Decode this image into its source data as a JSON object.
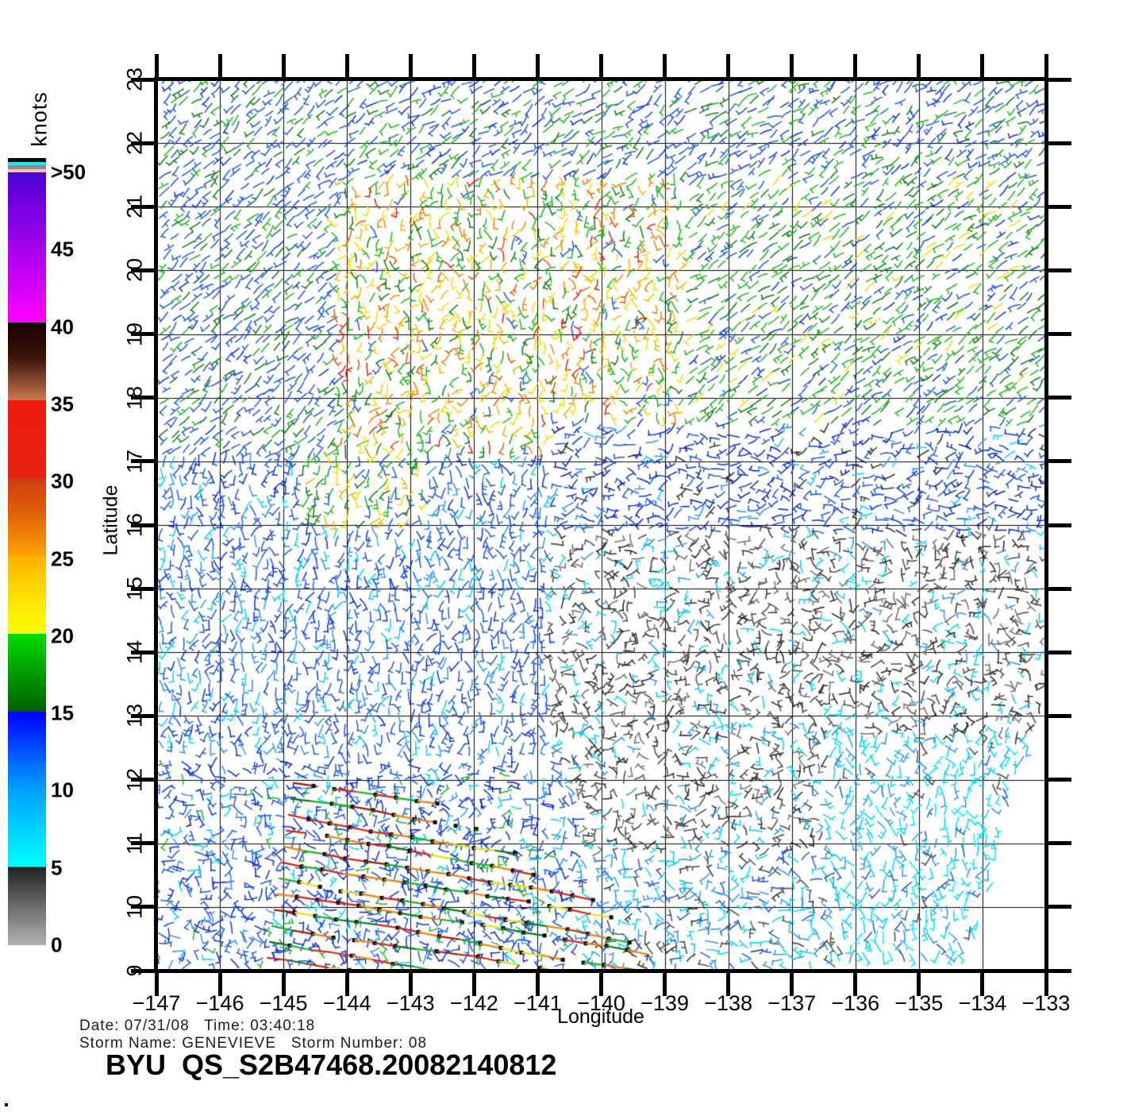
{
  "colorbar": {
    "title": "knots",
    "labels": [
      {
        "text": ">50",
        "knots": 50
      },
      {
        "text": "45",
        "knots": 45
      },
      {
        "text": "40",
        "knots": 40
      },
      {
        "text": "35",
        "knots": 35
      },
      {
        "text": "30",
        "knots": 30
      },
      {
        "text": "25",
        "knots": 25
      },
      {
        "text": "20",
        "knots": 20
      },
      {
        "text": "15",
        "knots": 15
      },
      {
        "text": "10",
        "knots": 10
      },
      {
        "text": "5",
        "knots": 5
      },
      {
        "text": "0",
        "knots": 0
      }
    ],
    "top_stripes": [
      "#000000",
      "#00f0ff",
      "#8c8c8c",
      "#ffb6be"
    ],
    "gradient_stops": [
      [
        "0%",
        "#4a00d2"
      ],
      [
        "12%",
        "#b800f0"
      ],
      [
        "19.4%",
        "#ff00ff"
      ],
      [
        "19.4%",
        "#160000"
      ],
      [
        "24%",
        "#3c1406"
      ],
      [
        "29.5%",
        "#c87a50"
      ],
      [
        "29.5%",
        "#f01a0e"
      ],
      [
        "39.6%",
        "#e42410"
      ],
      [
        "39.6%",
        "#cc3c12"
      ],
      [
        "44%",
        "#e06008"
      ],
      [
        "49.6%",
        "#ffa200"
      ],
      [
        "49.6%",
        "#ffb000"
      ],
      [
        "55%",
        "#ffe000"
      ],
      [
        "59.7%",
        "#fdfd00"
      ],
      [
        "59.7%",
        "#00dc00"
      ],
      [
        "69.8%",
        "#005e00"
      ],
      [
        "69.8%",
        "#0000ff"
      ],
      [
        "79.9%",
        "#00a2ff"
      ],
      [
        "89.9%",
        "#00ffff"
      ],
      [
        "89.9%",
        "#232323"
      ],
      [
        "100%",
        "#b2b2b2"
      ]
    ]
  },
  "axes": {
    "xlabel": "Longitude",
    "ylabel": "Latitude",
    "x_ticks": [
      {
        "value": -147,
        "label": "−147"
      },
      {
        "value": -146,
        "label": "−146"
      },
      {
        "value": -145,
        "label": "−145"
      },
      {
        "value": -144,
        "label": "−144"
      },
      {
        "value": -143,
        "label": "−143"
      },
      {
        "value": -142,
        "label": "−142"
      },
      {
        "value": -141,
        "label": "−141"
      },
      {
        "value": -140,
        "label": "−140"
      },
      {
        "value": -139,
        "label": "−139"
      },
      {
        "value": -138,
        "label": "−138"
      },
      {
        "value": -137,
        "label": "−137"
      },
      {
        "value": -136,
        "label": "−136"
      },
      {
        "value": -135,
        "label": "−135"
      },
      {
        "value": -134,
        "label": "−134"
      },
      {
        "value": -133,
        "label": "−133"
      }
    ],
    "y_ticks": [
      {
        "value": 23,
        "label": "23"
      },
      {
        "value": 22,
        "label": "22"
      },
      {
        "value": 21,
        "label": "21"
      },
      {
        "value": 20,
        "label": "20"
      },
      {
        "value": 19,
        "label": "19"
      },
      {
        "value": 18,
        "label": "18"
      },
      {
        "value": 17,
        "label": "17"
      },
      {
        "value": 16,
        "label": "16"
      },
      {
        "value": 15,
        "label": "15"
      },
      {
        "value": 14,
        "label": "14"
      },
      {
        "value": 13,
        "label": "13"
      },
      {
        "value": 12,
        "label": "12"
      },
      {
        "value": 11,
        "label": "11"
      },
      {
        "value": 10,
        "label": "10"
      },
      {
        "value": 9,
        "label": "9"
      }
    ]
  },
  "footer": {
    "date_line": "Date: 07/31/08   Time: 03:40:18",
    "storm_line": "Storm Name: GENEVIEVE   Storm Number: 08",
    "title_line": "BYU  QS_S2B47468.20082140812"
  },
  "chart_data": {
    "type": "scatter",
    "subtype": "wind-vector-map",
    "title": "BYU  QS_S2B47468.20082140812",
    "date": "07/31/08",
    "time": "03:40:18",
    "storm_name": "GENEVIEVE",
    "storm_number": "08",
    "xlabel": "Longitude",
    "ylabel": "Latitude",
    "xlim": [
      -147,
      -133
    ],
    "ylim": [
      9,
      23
    ],
    "grid": true,
    "speed_unit": "knots",
    "speed_scale_knots": [
      0,
      5,
      10,
      15,
      20,
      25,
      30,
      35,
      40,
      45,
      50
    ],
    "palette": {
      "gray_light": "#6e6e6e",
      "gray": "#4a4a4a",
      "gray_dark": "#2e2e2e",
      "black2": "#1e1e1e",
      "cyan": "#00d4f0",
      "cyan_bright": "#00e8fa",
      "blue_light": "#2e96ea",
      "blue_royal": "#2255dc",
      "blue": "#0c2fd8",
      "navy": "#0a1aa0",
      "green_dark": "#0b7a10",
      "green": "#1eb41e",
      "green_bright": "#27d427",
      "yellow": "#ecde00",
      "gold": "#f0b400",
      "orange": "#f08200",
      "orange_red": "#e25606",
      "red": "#d62412",
      "red_dark": "#a01a08"
    },
    "barb": {
      "spacing": 13,
      "len_min": 12,
      "len_max": 18,
      "seed": 42
    },
    "wind_regions": [
      {
        "name": "swath-gap-no-data",
        "skip": true,
        "edge_skip": {
          "lon_at_lat9": -134.25,
          "dlon_dlat": 0.28,
          "lat_max": 13.4
        },
        "knots": "no data"
      },
      {
        "name": "storm-zone-background",
        "lon": [
          -147,
          -140.4
        ],
        "lat": [
          9,
          12.25
        ],
        "knots": "8-15",
        "colors": [
          [
            "blue_royal",
            0.34
          ],
          [
            "blue",
            0.3
          ],
          [
            "blue_light",
            0.16
          ],
          [
            "cyan",
            0.08
          ],
          [
            "green",
            0.07
          ],
          [
            "navy",
            0.05
          ]
        ],
        "angle": 210,
        "spread": 170,
        "tick": 0.75,
        "bend": 0.35
      },
      {
        "name": "bottom-middle",
        "lon": [
          -140.4,
          -136.4
        ],
        "lat": [
          9,
          10.9
        ],
        "knots": "4-10",
        "colors": [
          [
            "blue_light",
            0.3
          ],
          [
            "cyan",
            0.28
          ],
          [
            "blue_royal",
            0.18
          ],
          [
            "gray",
            0.14
          ],
          [
            "gray_dark",
            0.1
          ]
        ],
        "angle": -25,
        "spread": 80,
        "tick": 0.7,
        "bend": 0.35
      },
      {
        "name": "bottom-right-cyan",
        "lon": [
          -136.4,
          -133
        ],
        "lat": [
          9,
          12.6
        ],
        "knots": "5-9",
        "colors": [
          [
            "cyan",
            0.42
          ],
          [
            "cyan_bright",
            0.2
          ],
          [
            "blue_light",
            0.22
          ],
          [
            "gray",
            0.1
          ],
          [
            "blue_royal",
            0.06
          ]
        ],
        "angle": 95,
        "spread": 55,
        "tick": 0.75,
        "bend": 0.3
      },
      {
        "name": "mid-warm-patch",
        "lon": [
          -144.7,
          -142.8
        ],
        "lat": [
          15.9,
          17.0
        ],
        "knots": "15-22",
        "colors": [
          [
            "green",
            0.25
          ],
          [
            "yellow",
            0.22
          ],
          [
            "blue_royal",
            0.22
          ],
          [
            "green_dark",
            0.16
          ],
          [
            "gold",
            0.15
          ]
        ],
        "angle": 75,
        "spread": 45,
        "tick": 0.8,
        "bend": 0.5
      },
      {
        "name": "mid-left-blue",
        "lon": [
          -147,
          -140.8
        ],
        "lat": [
          12.25,
          17.0
        ],
        "knots": "10-14",
        "colors": [
          [
            "blue_royal",
            0.46
          ],
          [
            "blue",
            0.22
          ],
          [
            "blue_light",
            0.18
          ],
          [
            "cyan",
            0.14
          ]
        ],
        "angle": 85,
        "spread": 40,
        "tick": 0.85,
        "bend": 0.35
      },
      {
        "name": "low-wind-gray",
        "lon": [
          -140.8,
          -133
        ],
        "lat": [
          10.9,
          15.9
        ],
        "knots": "0-7",
        "colors": [
          [
            "gray",
            0.26
          ],
          [
            "gray_dark",
            0.22
          ],
          [
            "gray_light",
            0.14
          ],
          [
            "black2",
            0.1
          ],
          [
            "cyan",
            0.18
          ],
          [
            "blue_light",
            0.1
          ]
        ],
        "angle": 0,
        "spread": 180,
        "tick": 0.75,
        "bend": 0.5
      },
      {
        "name": "right-blue-band",
        "lon": [
          -140.8,
          -133
        ],
        "lat": [
          15.9,
          17.55
        ],
        "knots": "10-15",
        "colors": [
          [
            "blue",
            0.34
          ],
          [
            "blue_royal",
            0.28
          ],
          [
            "navy",
            0.14
          ],
          [
            "blue_light",
            0.1
          ],
          [
            "gray_dark",
            0.09
          ],
          [
            "cyan",
            0.05
          ]
        ],
        "angle": 15,
        "spread": 50,
        "tick": 0.7,
        "bend": 0.35
      },
      {
        "name": "upper-left-blue-green",
        "lon": [
          -147,
          -144.2
        ],
        "lat": [
          17.0,
          23
        ],
        "knots": "12-17",
        "colors": [
          [
            "blue_royal",
            0.62
          ],
          [
            "green_dark",
            0.16
          ],
          [
            "green",
            0.14
          ],
          [
            "blue",
            0.08
          ]
        ],
        "angle": 42,
        "spread": 16,
        "tick": 0.45,
        "bend": 0.25
      },
      {
        "name": "top-band",
        "lon": [
          -144.2,
          -133
        ],
        "lat": [
          21.4,
          23
        ],
        "knots": "12-18",
        "colors": [
          [
            "blue_royal",
            0.48
          ],
          [
            "green",
            0.26
          ],
          [
            "green_dark",
            0.12
          ],
          [
            "blue",
            0.14
          ]
        ],
        "angle": 36,
        "spread": 22,
        "tick": 0.4,
        "bend": 0.25
      },
      {
        "name": "upper-middle-warm",
        "lon": [
          -144.2,
          -138.7
        ],
        "lat": [
          17.0,
          21.4
        ],
        "knots": "18-28",
        "colors": [
          [
            "green",
            0.24
          ],
          [
            "yellow",
            0.19
          ],
          [
            "gold",
            0.15
          ],
          [
            "green_dark",
            0.12
          ],
          [
            "orange",
            0.13
          ],
          [
            "orange_red",
            0.07
          ],
          [
            "red",
            0.04
          ],
          [
            "blue_royal",
            0.06
          ]
        ],
        "angle": 78,
        "spread": 55,
        "tick": 0.7,
        "bend": 0.6
      },
      {
        "name": "top-right-green",
        "lon": [
          -138.7,
          -133
        ],
        "lat": [
          17.55,
          21.4
        ],
        "knots": "13-19",
        "colors": [
          [
            "green",
            0.4
          ],
          [
            "green_dark",
            0.22
          ],
          [
            "blue_royal",
            0.2
          ],
          [
            "blue",
            0.08
          ],
          [
            "yellow",
            0.1
          ]
        ],
        "angle": 38,
        "spread": 14,
        "tick": 0.3,
        "bend": 0.3
      },
      {
        "name": "fallback",
        "lon": [
          -147,
          -133
        ],
        "lat": [
          9,
          23
        ],
        "knots": "8-15",
        "colors": [
          [
            "blue_royal",
            0.5
          ],
          [
            "green",
            0.25
          ],
          [
            "cyan",
            0.25
          ]
        ],
        "angle": 40,
        "spread": 30,
        "tick": 0.6,
        "bend": 0.3
      }
    ],
    "storm_streaks": {
      "description": "rain-flagged high-wind rows near storm GENEVIEVE",
      "knots": "20-35",
      "start_lon": -144.85,
      "start_lat": 11.95,
      "row_spacing": 20,
      "x_shift": -3,
      "slope": 0.17,
      "step": 26,
      "dot_prob": 0.8,
      "row_lengths": [
        200,
        250,
        300,
        345,
        390,
        425,
        455,
        480,
        500,
        510,
        505,
        485,
        450,
        400
      ],
      "segment_colors": [
        [
          "red",
          0.28
        ],
        [
          "orange",
          0.22
        ],
        [
          "yellow",
          0.18
        ],
        [
          "green",
          0.14
        ],
        [
          "green_dark",
          0.08
        ],
        [
          "red_dark",
          0.1
        ]
      ],
      "flag_colors": [
        [
          "green",
          0.5
        ],
        [
          "blue",
          0.3
        ],
        [
          "green_dark",
          0.2
        ]
      ],
      "dot_color": "#000000"
    }
  }
}
